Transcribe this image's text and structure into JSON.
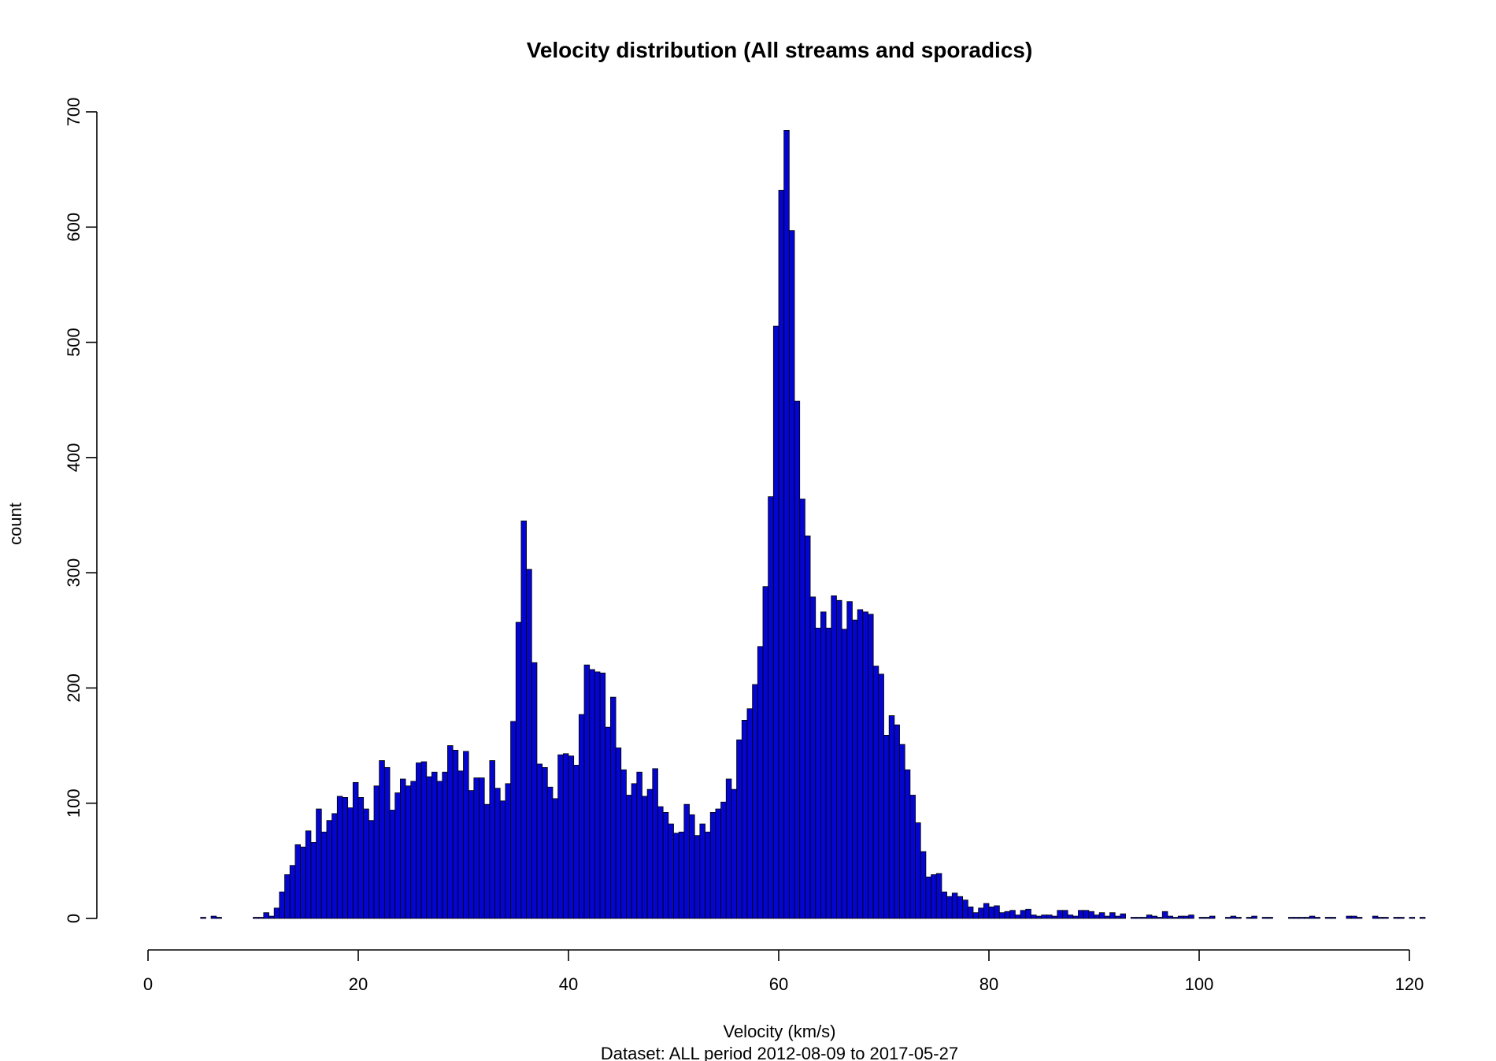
{
  "chart_data": {
    "type": "bar",
    "title": "Velocity distribution (All streams and sporadics)",
    "xlabel": "Velocity (km/s)",
    "ylabel": "count",
    "subtitle": "Dataset: ALL period 2012-08-09 to 2017-05-27",
    "xlim": [
      0,
      120
    ],
    "ylim": [
      0,
      700
    ],
    "x_ticks": [
      "0",
      "20",
      "40",
      "60",
      "80",
      "100",
      "120"
    ],
    "y_ticks": [
      "0",
      "100",
      "200",
      "300",
      "400",
      "500",
      "600",
      "700"
    ],
    "bar_color": "#0505d0",
    "bin_width": 0.5,
    "bin_start": 0,
    "values": [
      0,
      0,
      0,
      0,
      0,
      0,
      0,
      0,
      0,
      0,
      1,
      0,
      2,
      1,
      0,
      0,
      0,
      0,
      0,
      0,
      1,
      1,
      5,
      2,
      9,
      23,
      38,
      46,
      64,
      62,
      76,
      66,
      95,
      75,
      85,
      91,
      106,
      105,
      96,
      118,
      105,
      95,
      85,
      115,
      137,
      131,
      94,
      109,
      121,
      115,
      119,
      135,
      136,
      123,
      127,
      119,
      127,
      150,
      146,
      128,
      145,
      111,
      122,
      122,
      99,
      137,
      113,
      102,
      117,
      171,
      257,
      345,
      303,
      222,
      134,
      131,
      114,
      104,
      142,
      143,
      141,
      133,
      177,
      220,
      216,
      214,
      213,
      166,
      192,
      148,
      129,
      107,
      117,
      127,
      106,
      112,
      130,
      97,
      92,
      82,
      74,
      75,
      99,
      90,
      72,
      82,
      75,
      92,
      95,
      101,
      121,
      112,
      155,
      172,
      182,
      203,
      236,
      288,
      366,
      514,
      632,
      684,
      597,
      449,
      364,
      332,
      279,
      252,
      266,
      252,
      280,
      276,
      251,
      275,
      259,
      268,
      266,
      264,
      219,
      212,
      159,
      176,
      168,
      151,
      129,
      107,
      83,
      58,
      36,
      38,
      39,
      23,
      19,
      22,
      19,
      16,
      10,
      5,
      9,
      13,
      10,
      11,
      5,
      6,
      7,
      3,
      7,
      8,
      3,
      2,
      3,
      3,
      2,
      7,
      7,
      3,
      2,
      7,
      7,
      6,
      3,
      5,
      2,
      5,
      2,
      4,
      0,
      1,
      1,
      1,
      3,
      2,
      1,
      6,
      2,
      1,
      2,
      2,
      3,
      0,
      1,
      1,
      2,
      0,
      0,
      1,
      2,
      1,
      0,
      1,
      2,
      0,
      1,
      1,
      0,
      0,
      0,
      1,
      1,
      1,
      1,
      2,
      1,
      0,
      1,
      1,
      0,
      0,
      2,
      2,
      1,
      0,
      0,
      2,
      1,
      1,
      0,
      1,
      1,
      0,
      1,
      0,
      1,
      0,
      0,
      0,
      0
    ]
  }
}
